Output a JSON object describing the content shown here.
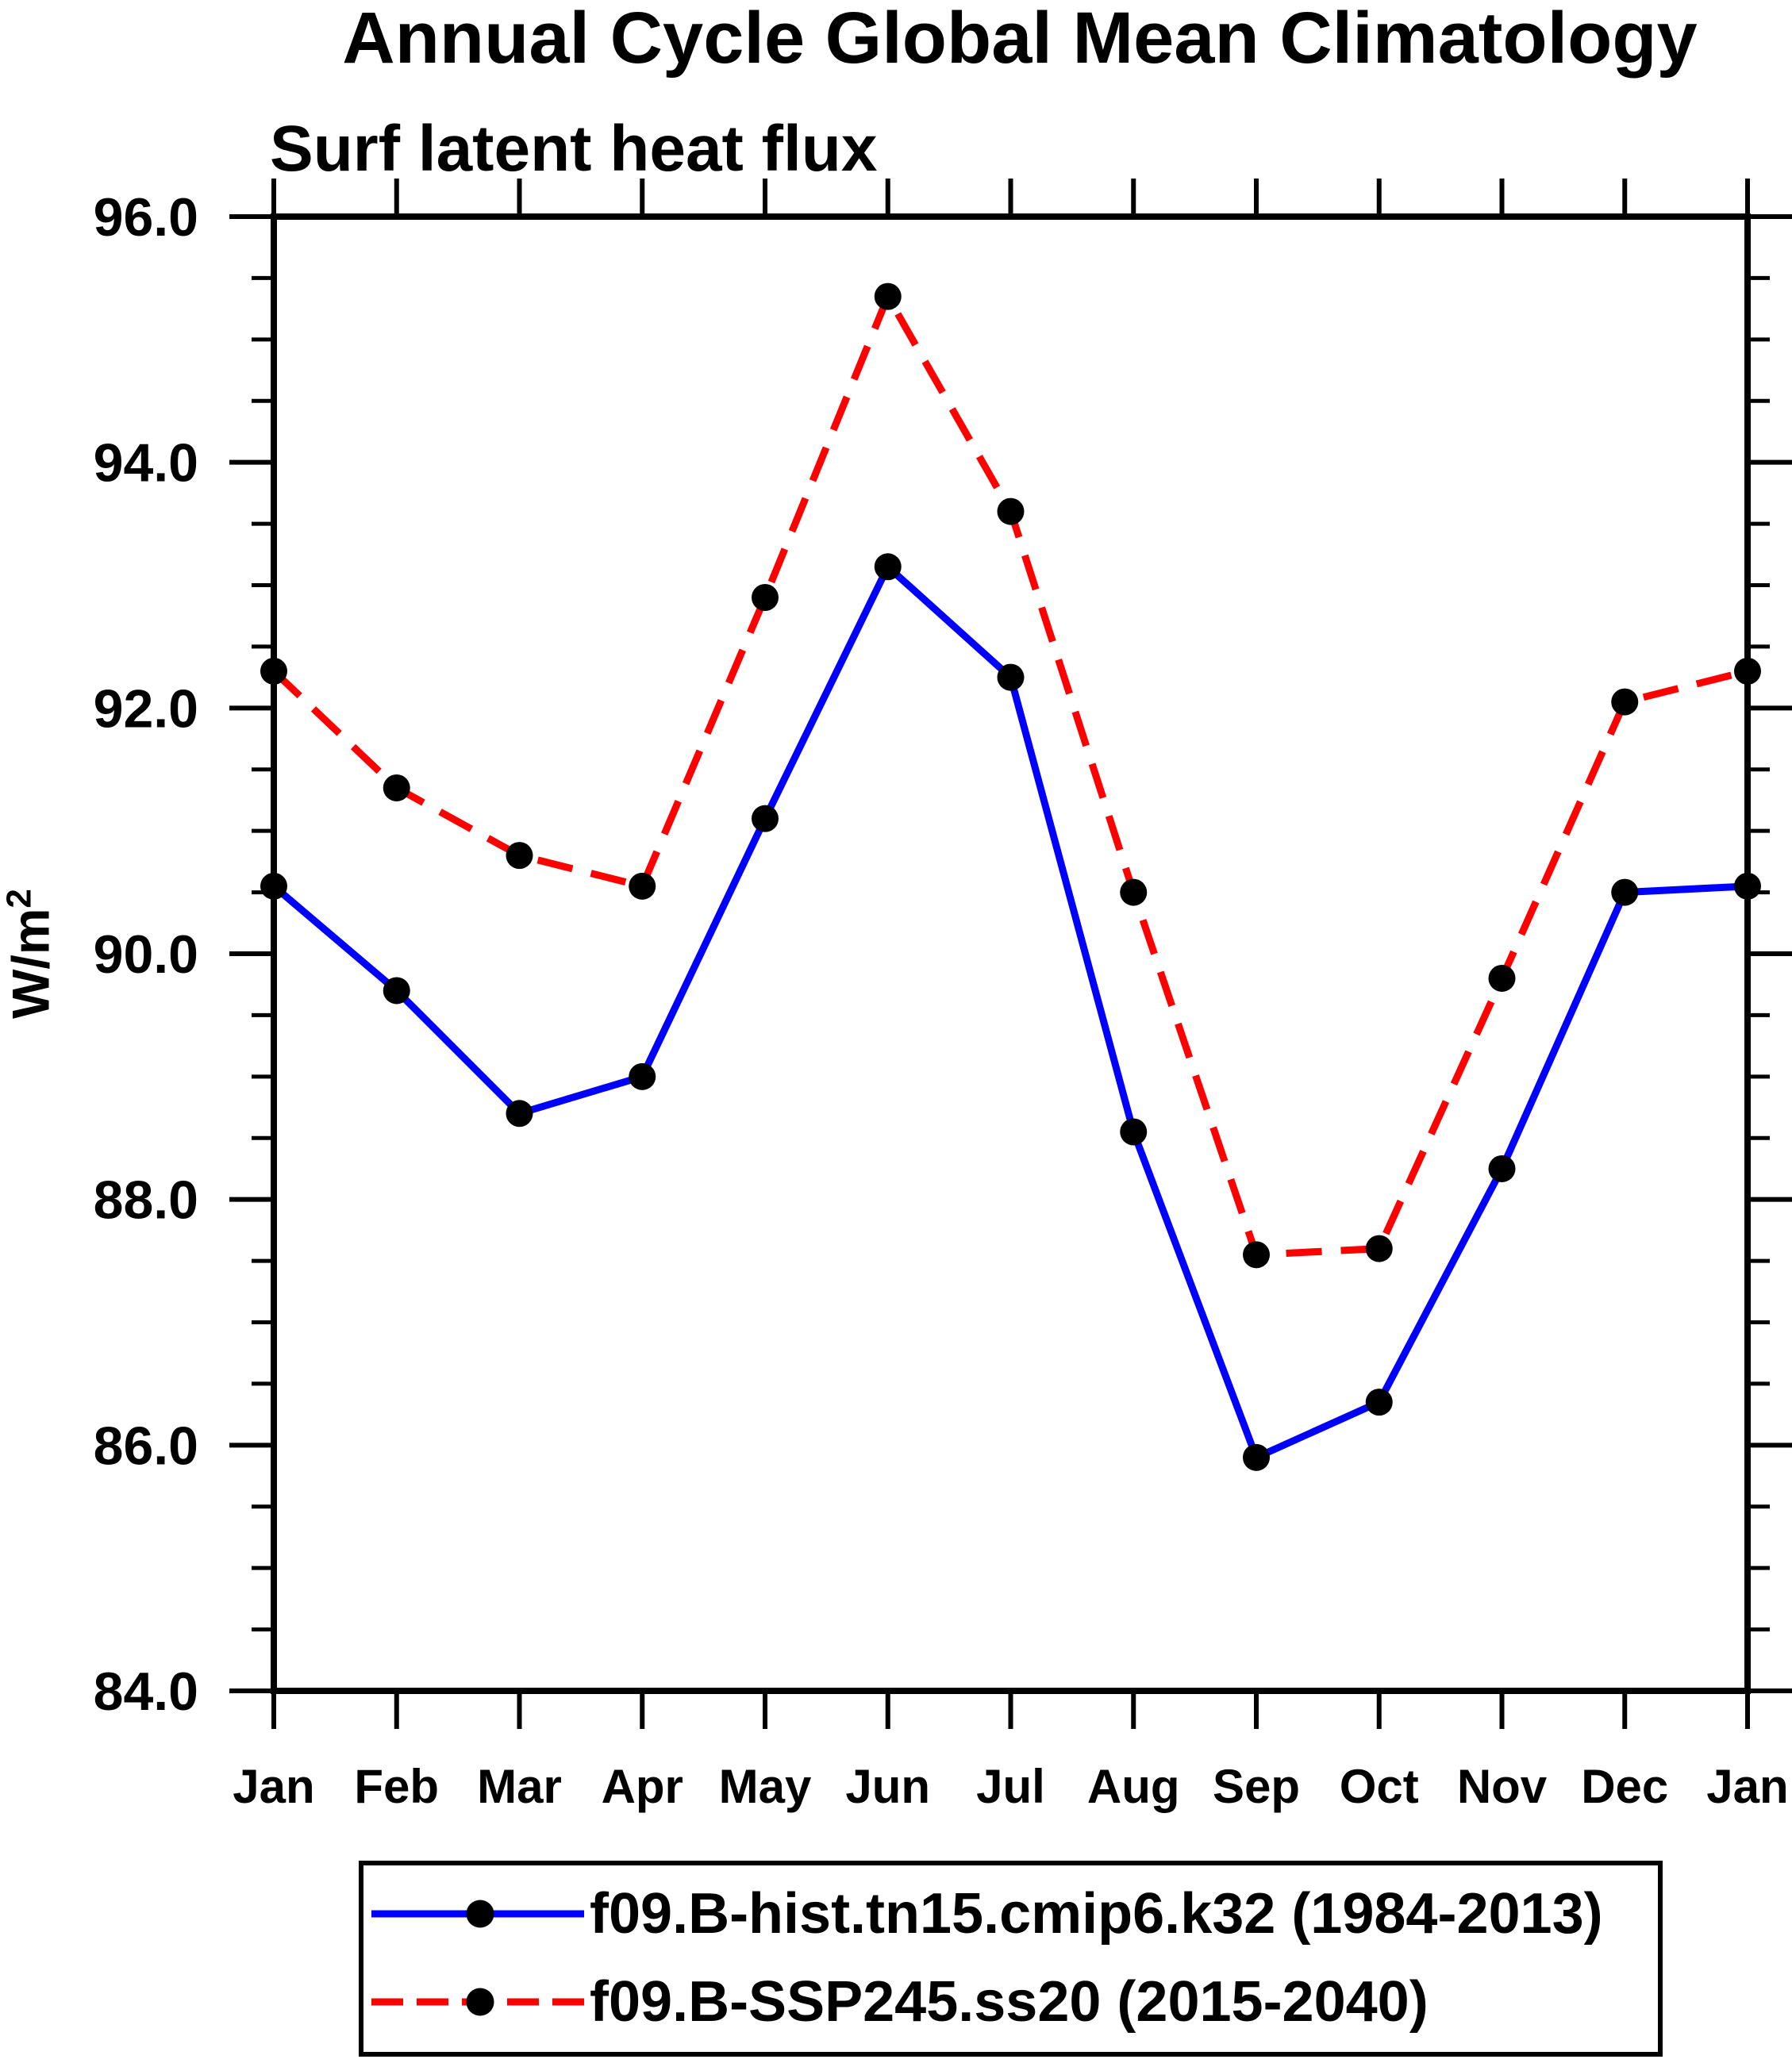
{
  "chart_data": {
    "type": "line",
    "title": "Annual Cycle Global Mean Climatology",
    "subtitle": "Surf latent heat flux",
    "ylabel_base": "W/m",
    "ylabel_exponent": "2",
    "x_categories": [
      "Jan",
      "Feb",
      "Mar",
      "Apr",
      "May",
      "Jun",
      "Jul",
      "Aug",
      "Sep",
      "Oct",
      "Nov",
      "Dec",
      "Jan"
    ],
    "ylim": [
      84.0,
      96.0
    ],
    "ytick_major": 2.0,
    "ytick_minor": 0.5,
    "ytick_labels": [
      "96.0",
      "94.0",
      "92.0",
      "90.0",
      "88.0",
      "86.0",
      "84.0"
    ],
    "grid": false,
    "legend_position": "bottom",
    "axis_color": "#000000",
    "series": [
      {
        "name": "f09.B-hist.tn15.cmip6.k32 (1984-2013)",
        "color": "#0000ff",
        "line_style": "solid",
        "marker": "circle",
        "marker_color": "#000000",
        "values": [
          90.55,
          89.7,
          88.7,
          89.0,
          91.1,
          93.15,
          92.25,
          88.55,
          85.9,
          86.35,
          88.25,
          90.5,
          90.55
        ]
      },
      {
        "name": "f09.B-SSP245.ss20 (2015-2040)",
        "color": "#ff0000",
        "line_style": "dashed",
        "marker": "circle",
        "marker_color": "#000000",
        "values": [
          92.3,
          91.35,
          90.8,
          90.55,
          92.9,
          95.35,
          93.6,
          90.5,
          87.55,
          87.6,
          89.8,
          92.05,
          92.3
        ]
      }
    ]
  }
}
